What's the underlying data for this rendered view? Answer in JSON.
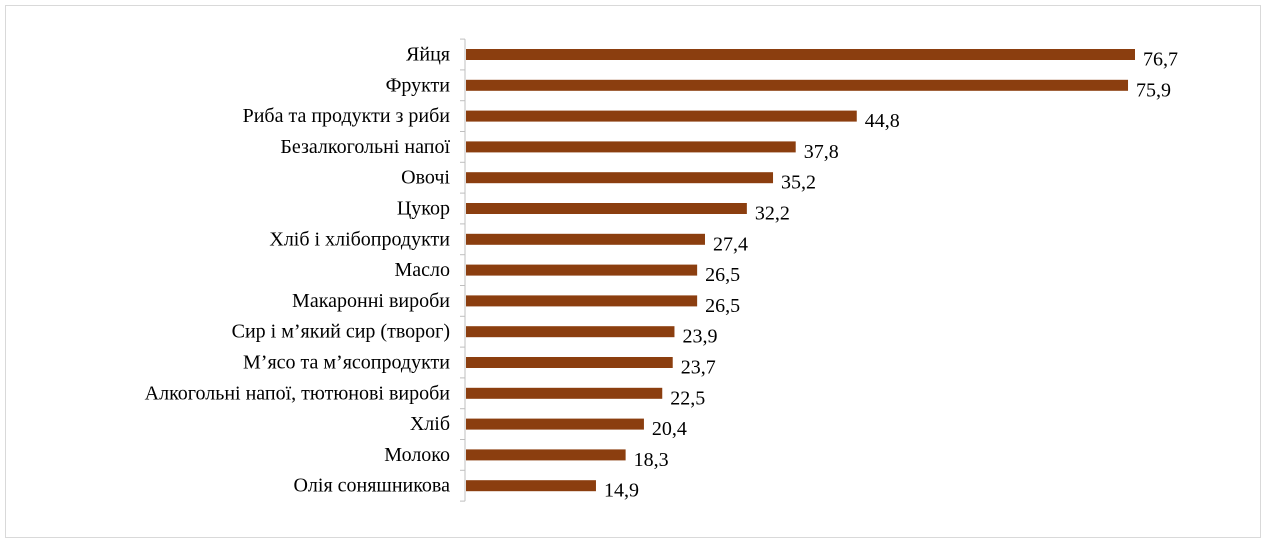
{
  "chart_data": {
    "type": "bar",
    "orientation": "horizontal",
    "categories": [
      "Яйця",
      "Фрукти",
      "Риба та продукти з риби",
      "Безалкогольні напої",
      "Овочі",
      "Цукор ",
      "Хліб і хлібопродукти",
      "Масло",
      "Макаронні вироби",
      "Сир і м’який сир (творог)",
      "М’ясо та м’ясопродукти",
      "Алкогольні напої, тютюнові вироби",
      "Хліб",
      "Молоко",
      "Олія соняшникова"
    ],
    "values": [
      76.7,
      75.9,
      44.8,
      37.8,
      35.2,
      32.2,
      27.4,
      26.5,
      26.5,
      23.9,
      23.7,
      22.5,
      20.4,
      18.3,
      14.9
    ],
    "value_labels": [
      "76,7",
      "75,9",
      "44,8",
      "37,8",
      "35,2",
      "32,2",
      "27,4",
      "26,5",
      "26,5",
      "23,9",
      "23,7",
      "22,5",
      "20,4",
      "18,3",
      "14,9"
    ],
    "xlim": [
      0,
      80
    ],
    "grid": false,
    "legend": "none",
    "bar_color": "#8B3E0F",
    "axis_color": "#bfbfbf"
  }
}
